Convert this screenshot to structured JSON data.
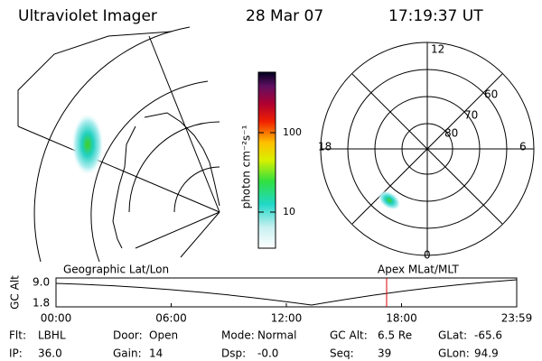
{
  "header": {
    "title": "Ultraviolet Imager",
    "date": "28 Mar 07",
    "time": "17:19:37 UT"
  },
  "colorbar": {
    "label": "photon cm⁻²s⁻¹",
    "ticks": [
      10,
      100
    ]
  },
  "polar": {
    "hour_labels": [
      "12",
      "18",
      "6",
      "0"
    ],
    "lat_labels": [
      "60",
      "70",
      "80"
    ]
  },
  "timeline": {
    "left_label": "Geographic Lat/Lon",
    "right_label": "Apex MLat/MLT",
    "y_label": "GC Alt",
    "yticks": [
      "9.0",
      "1.8"
    ],
    "xticks": [
      "00:00",
      "06:00",
      "12:00",
      "18:00",
      "23:59"
    ]
  },
  "info": [
    [
      [
        "Flt:",
        "LBHL"
      ],
      [
        "Door:",
        "Open"
      ],
      [
        "Mode:",
        "Normal"
      ],
      [
        "GC Alt:",
        "6.5 Re"
      ],
      [
        "GLat:",
        "-65.6"
      ]
    ],
    [
      [
        "IP:",
        "36.0"
      ],
      [
        "Gain:",
        "14"
      ],
      [
        "Dsp:",
        "-0.0"
      ],
      [
        "Seq:",
        "39"
      ],
      [
        "GLon:",
        "94.9"
      ]
    ]
  ]
}
